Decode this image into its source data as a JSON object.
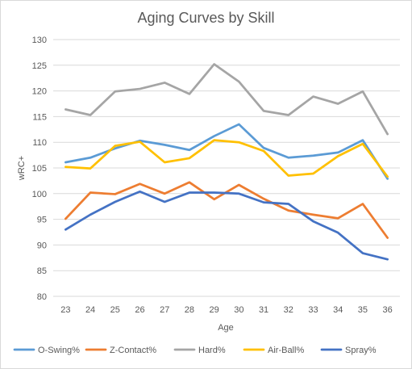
{
  "chart_data": {
    "type": "line",
    "title": "Aging Curves by Skill",
    "xlabel": "Age",
    "ylabel": "wRC+",
    "x": [
      23,
      24,
      25,
      26,
      27,
      28,
      29,
      30,
      31,
      32,
      33,
      34,
      35,
      36
    ],
    "ylim": [
      80,
      130
    ],
    "yticks": [
      80,
      85,
      90,
      95,
      100,
      105,
      110,
      115,
      120,
      125,
      130
    ],
    "grid": true,
    "legend_position": "bottom",
    "series": [
      {
        "name": "O-Swing%",
        "color": "#5B9BD5",
        "values": [
          106.1,
          107.0,
          108.8,
          110.3,
          109.5,
          108.5,
          111.2,
          113.5,
          108.9,
          107.0,
          107.4,
          108.0,
          110.4,
          102.9
        ]
      },
      {
        "name": "Z-Contact%",
        "color": "#ED7D31",
        "values": [
          95.1,
          100.2,
          99.9,
          101.9,
          100.0,
          102.2,
          98.9,
          101.7,
          99.0,
          96.7,
          95.9,
          95.2,
          98.0,
          91.4
        ]
      },
      {
        "name": "Hard%",
        "color": "#A5A5A5",
        "values": [
          116.4,
          115.3,
          119.9,
          120.4,
          121.6,
          119.4,
          125.2,
          121.8,
          116.1,
          115.3,
          118.9,
          117.5,
          119.9,
          111.6
        ]
      },
      {
        "name": "Air-Ball%",
        "color": "#FFC000",
        "values": [
          105.2,
          104.9,
          109.3,
          110.1,
          106.1,
          106.9,
          110.4,
          110.0,
          108.3,
          103.5,
          103.9,
          107.3,
          109.7,
          103.3
        ]
      },
      {
        "name": "Spray%",
        "color": "#4472C4",
        "values": [
          93.0,
          95.9,
          98.4,
          100.4,
          98.4,
          100.2,
          100.2,
          100.0,
          98.3,
          98.0,
          94.6,
          92.4,
          88.4,
          87.2
        ]
      }
    ]
  }
}
